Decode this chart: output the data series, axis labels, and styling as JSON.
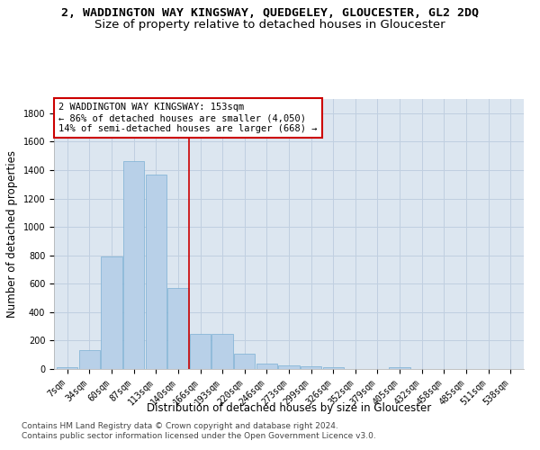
{
  "title": "2, WADDINGTON WAY KINGSWAY, QUEDGELEY, GLOUCESTER, GL2 2DQ",
  "subtitle": "Size of property relative to detached houses in Gloucester",
  "xlabel": "Distribution of detached houses by size in Gloucester",
  "ylabel": "Number of detached properties",
  "categories": [
    "7sqm",
    "34sqm",
    "60sqm",
    "87sqm",
    "113sqm",
    "140sqm",
    "166sqm",
    "193sqm",
    "220sqm",
    "246sqm",
    "273sqm",
    "299sqm",
    "326sqm",
    "352sqm",
    "379sqm",
    "405sqm",
    "432sqm",
    "458sqm",
    "485sqm",
    "511sqm",
    "538sqm"
  ],
  "values": [
    10,
    130,
    790,
    1460,
    1370,
    570,
    245,
    245,
    105,
    35,
    25,
    20,
    15,
    0,
    0,
    15,
    0,
    0,
    0,
    0,
    0
  ],
  "bar_color": "#b8d0e8",
  "bar_edge_color": "#7bafd4",
  "vline_color": "#cc0000",
  "annotation_text": "2 WADDINGTON WAY KINGSWAY: 153sqm\n← 86% of detached houses are smaller (4,050)\n14% of semi-detached houses are larger (668) →",
  "annotation_box_color": "#ffffff",
  "annotation_box_edge_color": "#cc0000",
  "ylim": [
    0,
    1900
  ],
  "yticks": [
    0,
    200,
    400,
    600,
    800,
    1000,
    1200,
    1400,
    1600,
    1800
  ],
  "footer1": "Contains HM Land Registry data © Crown copyright and database right 2024.",
  "footer2": "Contains public sector information licensed under the Open Government Licence v3.0.",
  "bg_color": "#ffffff",
  "plot_bg_color": "#dce6f0",
  "grid_color": "#c0cfe0",
  "title_fontsize": 9.5,
  "subtitle_fontsize": 9.5,
  "axis_label_fontsize": 8.5,
  "tick_fontsize": 7,
  "annotation_fontsize": 7.5,
  "footer_fontsize": 6.5
}
